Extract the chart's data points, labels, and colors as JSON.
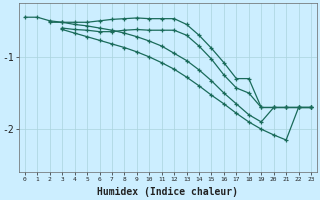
{
  "xlabel": "Humidex (Indice chaleur)",
  "bg_color": "#cceeff",
  "grid_color": "#aad4dd",
  "line_color": "#1a6b5a",
  "xlim": [
    -0.5,
    23.5
  ],
  "ylim": [
    -2.6,
    -0.25
  ],
  "yticks": [
    -2,
    -1
  ],
  "xticks": [
    0,
    1,
    2,
    3,
    4,
    5,
    6,
    7,
    8,
    9,
    10,
    11,
    12,
    13,
    14,
    15,
    16,
    17,
    18,
    19,
    20,
    21,
    22,
    23
  ],
  "line1_x": [
    0,
    1,
    2,
    3,
    4,
    5,
    6,
    7,
    8,
    9,
    10,
    11,
    12,
    13,
    14,
    15,
    16,
    17,
    18,
    19,
    20,
    21,
    22,
    23
  ],
  "line1_y": [
    -0.45,
    -0.45,
    -0.5,
    -0.52,
    -0.55,
    -0.57,
    -0.6,
    -0.63,
    -0.67,
    -0.72,
    -0.78,
    -0.85,
    -0.95,
    -1.05,
    -1.18,
    -1.33,
    -1.5,
    -1.65,
    -1.8,
    -1.9,
    -1.7,
    -1.7,
    -1.7,
    -1.7
  ],
  "line2_x": [
    2,
    3,
    4,
    5,
    6,
    7,
    8,
    9,
    10,
    11,
    12,
    13,
    14,
    15,
    16,
    17,
    18,
    19,
    20,
    21,
    22,
    23
  ],
  "line2_y": [
    -0.52,
    -0.52,
    -0.52,
    -0.52,
    -0.5,
    -0.48,
    -0.47,
    -0.46,
    -0.47,
    -0.47,
    -0.47,
    -0.55,
    -0.7,
    -0.88,
    -1.08,
    -1.3,
    -1.3,
    -1.7,
    -1.7,
    -1.7,
    -1.7,
    -1.7
  ],
  "line3_x": [
    3,
    4,
    5,
    6,
    7,
    8,
    9,
    10,
    11,
    12,
    13,
    14,
    15,
    16,
    17,
    18,
    19,
    20,
    21,
    22,
    23
  ],
  "line3_y": [
    -0.6,
    -0.62,
    -0.63,
    -0.65,
    -0.65,
    -0.63,
    -0.62,
    -0.63,
    -0.63,
    -0.63,
    -0.7,
    -0.85,
    -1.03,
    -1.25,
    -1.43,
    -1.5,
    -1.7,
    -1.7,
    -1.7,
    -1.7,
    -1.7
  ],
  "line4_x": [
    3,
    4,
    5,
    6,
    7,
    8,
    9,
    10,
    11,
    12,
    13,
    14,
    15,
    16,
    17,
    18,
    19,
    20,
    21,
    22,
    23
  ],
  "line4_y": [
    -0.62,
    -0.67,
    -0.72,
    -0.77,
    -0.82,
    -0.87,
    -0.93,
    -1.0,
    -1.08,
    -1.17,
    -1.28,
    -1.4,
    -1.53,
    -1.65,
    -1.78,
    -1.9,
    -2.0,
    -2.08,
    -2.15,
    -1.7,
    -1.7
  ]
}
